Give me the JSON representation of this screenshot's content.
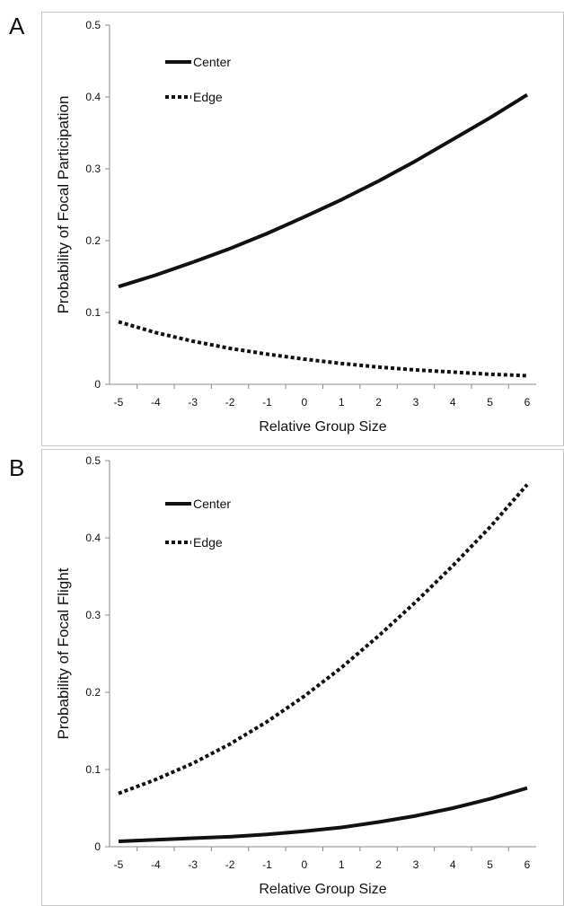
{
  "chart_data": [
    {
      "panel_label": "A",
      "type": "line",
      "title": "",
      "xlabel": "Relative Group Size",
      "ylabel": "Probability of Focal Participation",
      "xlim": [
        -5,
        6
      ],
      "ylim": [
        0,
        0.5
      ],
      "x_ticks": [
        -5,
        -4,
        -3,
        -2,
        -1,
        0,
        1,
        2,
        3,
        4,
        5,
        6
      ],
      "y_ticks": [
        0,
        0.1,
        0.2,
        0.3,
        0.4,
        0.5
      ],
      "y_tick_labels": [
        "0",
        "0.1",
        "0.2",
        "0.3",
        "0.4",
        "0.5"
      ],
      "grid": false,
      "legend_position": "top-left",
      "x": [
        -5,
        -4,
        -3,
        -2,
        -1,
        0,
        1,
        2,
        3,
        4,
        5,
        6
      ],
      "series": [
        {
          "name": "Center",
          "style": "solid",
          "color": "#111111",
          "values": [
            0.136,
            0.152,
            0.17,
            0.189,
            0.21,
            0.233,
            0.257,
            0.283,
            0.311,
            0.341,
            0.371,
            0.403
          ]
        },
        {
          "name": "Edge",
          "style": "dotted",
          "color": "#111111",
          "values": [
            0.087,
            0.072,
            0.06,
            0.05,
            0.042,
            0.035,
            0.029,
            0.024,
            0.02,
            0.017,
            0.014,
            0.012
          ]
        }
      ]
    },
    {
      "panel_label": "B",
      "type": "line",
      "title": "",
      "xlabel": "Relative Group Size",
      "ylabel": "Probability of Focal Flight",
      "xlim": [
        -5,
        6
      ],
      "ylim": [
        0,
        0.5
      ],
      "x_ticks": [
        -5,
        -4,
        -3,
        -2,
        -1,
        0,
        1,
        2,
        3,
        4,
        5,
        6
      ],
      "y_ticks": [
        0,
        0.1,
        0.2,
        0.3,
        0.4,
        0.5
      ],
      "y_tick_labels": [
        "0",
        "0.1",
        "0.2",
        "0.3",
        "0.4",
        "0.5"
      ],
      "grid": false,
      "legend_position": "top-left",
      "x": [
        -5,
        -4,
        -3,
        -2,
        -1,
        0,
        1,
        2,
        3,
        4,
        5,
        6
      ],
      "series": [
        {
          "name": "Center",
          "style": "solid",
          "color": "#111111",
          "values": [
            0.007,
            0.009,
            0.011,
            0.013,
            0.016,
            0.02,
            0.025,
            0.032,
            0.04,
            0.05,
            0.062,
            0.076
          ]
        },
        {
          "name": "Edge",
          "style": "dotted",
          "color": "#111111",
          "values": [
            0.069,
            0.087,
            0.108,
            0.133,
            0.162,
            0.195,
            0.232,
            0.273,
            0.317,
            0.364,
            0.414,
            0.469
          ]
        }
      ]
    }
  ]
}
